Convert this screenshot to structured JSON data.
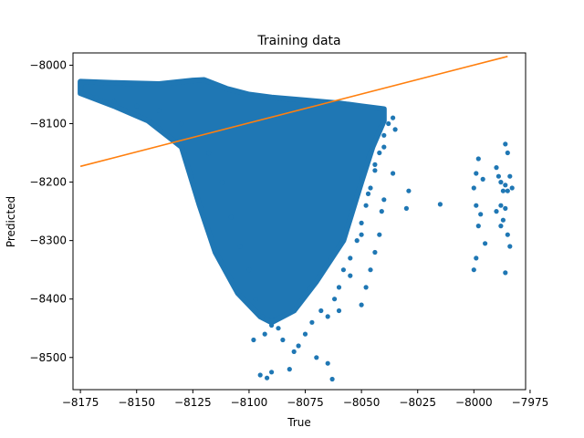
{
  "chart_data": {
    "type": "scatter",
    "title": "Training data",
    "xlabel": "True",
    "ylabel": "Predicted",
    "xlim": [
      -8178.3,
      -7977.0
    ],
    "ylim": [
      -8555.0,
      -7979.0
    ],
    "xticks": [
      -8175,
      -8150,
      -8125,
      -8100,
      -8075,
      -8050,
      -8025,
      -8000,
      -7975
    ],
    "xtick_labels": [
      "−8175",
      "−8150",
      "−8125",
      "−8100",
      "−8075",
      "−8050",
      "−8025",
      "−8000",
      "−7975"
    ],
    "yticks": [
      -8000,
      -8100,
      -8200,
      -8300,
      -8400,
      -8500
    ],
    "ytick_labels": [
      "−8000",
      "−8100",
      "−8200",
      "−8300",
      "−8400",
      "−8500"
    ],
    "grid": false,
    "legend": false,
    "colors": {
      "scatter": "#1f77b4",
      "line": "#ff7f0e"
    },
    "scatter_cloud": {
      "outline_top": [
        [
          -8175,
          -8028
        ],
        [
          -8160,
          -8030
        ],
        [
          -8140,
          -8032
        ],
        [
          -8125,
          -8026
        ],
        [
          -8120,
          -8025
        ],
        [
          -8110,
          -8040
        ],
        [
          -8100,
          -8050
        ],
        [
          -8090,
          -8055
        ],
        [
          -8075,
          -8060
        ],
        [
          -8060,
          -8065
        ],
        [
          -8050,
          -8070
        ],
        [
          -8040,
          -8075
        ]
      ],
      "outline_bottom": [
        [
          -8040,
          -8095
        ],
        [
          -8045,
          -8140
        ],
        [
          -8050,
          -8200
        ],
        [
          -8058,
          -8300
        ],
        [
          -8070,
          -8370
        ],
        [
          -8080,
          -8420
        ],
        [
          -8090,
          -8440
        ],
        [
          -8095,
          -8430
        ],
        [
          -8105,
          -8390
        ],
        [
          -8115,
          -8320
        ],
        [
          -8122,
          -8240
        ],
        [
          -8130,
          -8140
        ],
        [
          -8145,
          -8095
        ],
        [
          -8160,
          -8070
        ],
        [
          -8175,
          -8048
        ]
      ]
    },
    "points": [
      [
        -8175,
        -8040
      ],
      [
        -8172,
        -8050
      ],
      [
        -8168,
        -8055
      ],
      [
        -8160,
        -8062
      ],
      [
        -8150,
        -8070
      ],
      [
        -8140,
        -8078
      ],
      [
        -8130,
        -8100
      ],
      [
        -8122,
        -8120
      ],
      [
        -8118,
        -8150
      ],
      [
        -8112,
        -8200
      ],
      [
        -8108,
        -8260
      ],
      [
        -8104,
        -8310
      ],
      [
        -8100,
        -8350
      ],
      [
        -8097,
        -8400
      ],
      [
        -8094,
        -8430
      ],
      [
        -8090,
        -8445
      ],
      [
        -8087,
        -8450
      ],
      [
        -8093,
        -8460
      ],
      [
        -8098,
        -8470
      ],
      [
        -8085,
        -8470
      ],
      [
        -8080,
        -8490
      ],
      [
        -8070,
        -8500
      ],
      [
        -8065,
        -8510
      ],
      [
        -8063,
        -8537
      ],
      [
        -8095,
        -8530
      ],
      [
        -8090,
        -8525
      ],
      [
        -8092,
        -8535
      ],
      [
        -8082,
        -8520
      ],
      [
        -8078,
        -8480
      ],
      [
        -8075,
        -8460
      ],
      [
        -8072,
        -8440
      ],
      [
        -8068,
        -8420
      ],
      [
        -8062,
        -8400
      ],
      [
        -8060,
        -8380
      ],
      [
        -8058,
        -8350
      ],
      [
        -8055,
        -8330
      ],
      [
        -8052,
        -8300
      ],
      [
        -8050,
        -8270
      ],
      [
        -8048,
        -8240
      ],
      [
        -8046,
        -8210
      ],
      [
        -8044,
        -8180
      ],
      [
        -8042,
        -8150
      ],
      [
        -8040,
        -8120
      ],
      [
        -8038,
        -8100
      ],
      [
        -8036,
        -8090
      ],
      [
        -8035,
        -8110
      ],
      [
        -8040,
        -8140
      ],
      [
        -8044,
        -8170
      ],
      [
        -8047,
        -8220
      ],
      [
        -8050,
        -8290
      ],
      [
        -8055,
        -8360
      ],
      [
        -8060,
        -8420
      ],
      [
        -8065,
        -8430
      ],
      [
        -8050,
        -8410
      ],
      [
        -8048,
        -8380
      ],
      [
        -8046,
        -8350
      ],
      [
        -8044,
        -8320
      ],
      [
        -8042,
        -8290
      ],
      [
        -8041,
        -8250
      ],
      [
        -8040,
        -8230
      ],
      [
        -8036,
        -8185
      ],
      [
        -8030,
        -8245
      ],
      [
        -8029,
        -8215
      ],
      [
        -8015,
        -8238
      ],
      [
        -8000,
        -8210
      ],
      [
        -7999,
        -8240
      ],
      [
        -7998,
        -8275
      ],
      [
        -7997,
        -8255
      ],
      [
        -7999,
        -8185
      ],
      [
        -7998,
        -8160
      ],
      [
        -7996,
        -8195
      ],
      [
        -7995,
        -8305
      ],
      [
        -8000,
        -8350
      ],
      [
        -7999,
        -8330
      ],
      [
        -7990,
        -8175
      ],
      [
        -7988,
        -8200
      ],
      [
        -7987,
        -8215
      ],
      [
        -7989,
        -8190
      ],
      [
        -7988,
        -8240
      ],
      [
        -7987,
        -8265
      ],
      [
        -7986,
        -8245
      ],
      [
        -7990,
        -8250
      ],
      [
        -7988,
        -8275
      ],
      [
        -7986,
        -8135
      ],
      [
        -7985,
        -8150
      ],
      [
        -7984,
        -8190
      ],
      [
        -7983,
        -8210
      ],
      [
        -7986,
        -8205
      ],
      [
        -7985,
        -8290
      ],
      [
        -7984,
        -8310
      ],
      [
        -7986,
        -8355
      ],
      [
        -7985,
        -8215
      ]
    ],
    "series": [
      {
        "type": "scatter",
        "color": "#1f77b4",
        "source": "points"
      },
      {
        "type": "line",
        "color": "#ff7f0e",
        "x": [
          -8175,
          -7985
        ],
        "y": [
          -8173,
          -7985
        ]
      }
    ]
  }
}
